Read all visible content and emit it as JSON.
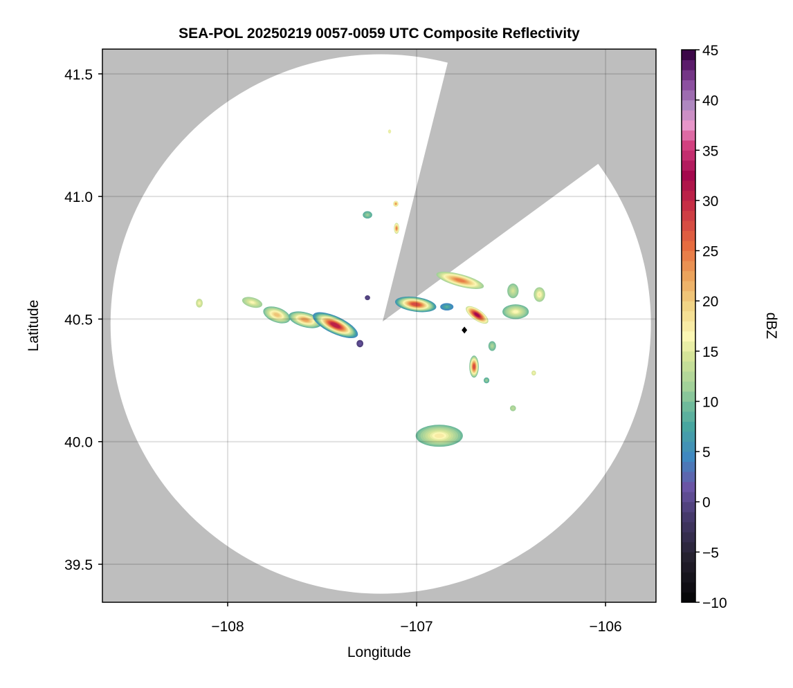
{
  "chart_data": {
    "type": "heatmap",
    "title": "SEA-POL 20250219 0057-0059 UTC Composite Reflectivity",
    "xlabel": "Longitude",
    "ylabel": "Latitude",
    "xlim": [
      -108.663,
      -105.733
    ],
    "ylim": [
      39.345,
      41.601
    ],
    "xticks": [
      -108,
      -107,
      -106
    ],
    "xtick_labels": [
      "−108",
      "−107",
      "−106"
    ],
    "yticks": [
      39.5,
      40.0,
      40.5,
      41.0,
      41.5
    ],
    "ytick_labels": [
      "39.5",
      "40.0",
      "40.5",
      "41.0",
      "41.5"
    ],
    "grid": true,
    "colors": {
      "no_data": "#bebebe",
      "coverage": "#ffffff",
      "marker": "#000000"
    },
    "colorbar": {
      "label": "dBZ",
      "range": [
        -10,
        45
      ],
      "step": 1,
      "ticks": [
        -10,
        -5,
        0,
        5,
        10,
        15,
        20,
        25,
        30,
        35,
        40,
        45
      ],
      "tick_labels": [
        "−10",
        "−5",
        "0",
        "5",
        "10",
        "15",
        "20",
        "25",
        "30",
        "35",
        "40",
        "45"
      ],
      "stops": [
        [
          -10,
          "#000000"
        ],
        [
          -5,
          "#25212f"
        ],
        [
          -1,
          "#45396b"
        ],
        [
          2,
          "#6a55a5"
        ],
        [
          5,
          "#3f88c0"
        ],
        [
          8,
          "#48a6a0"
        ],
        [
          10,
          "#6fba9b"
        ],
        [
          12,
          "#a2d199"
        ],
        [
          15,
          "#d5e498"
        ],
        [
          17,
          "#fcf7b4"
        ],
        [
          20,
          "#f1d486"
        ],
        [
          23,
          "#eba35c"
        ],
        [
          26,
          "#e66c40"
        ],
        [
          30,
          "#c62e45"
        ],
        [
          33,
          "#a4084d"
        ],
        [
          36,
          "#d2407f"
        ],
        [
          38,
          "#e796c9"
        ],
        [
          40,
          "#ae88c0"
        ],
        [
          42,
          "#8c50a0"
        ],
        [
          44,
          "#5b1c6b"
        ],
        [
          45,
          "#3c0848"
        ]
      ]
    },
    "radar": {
      "lon": -106.747,
      "lat": 40.455
    },
    "coverage": {
      "center_lon": -107.19,
      "center_lat": 40.48,
      "radius_lon_deg": 1.43,
      "radius_lat_deg": 1.1
    },
    "blocked_sector": {
      "apex": [
        -107.18,
        40.49
      ],
      "edge1": [
        -106.842,
        41.525
      ],
      "edge2": [
        -106.062,
        41.12
      ]
    },
    "echoes": [
      {
        "lon": -107.74,
        "lat": 40.517,
        "dlon": 0.075,
        "dlat": 0.03,
        "rot": 20,
        "peak_dbz": 21,
        "edge_dbz": 10
      },
      {
        "lon": -107.59,
        "lat": 40.497,
        "dlon": 0.09,
        "dlat": 0.03,
        "rot": 15,
        "peak_dbz": 23,
        "edge_dbz": 9
      },
      {
        "lon": -107.43,
        "lat": 40.475,
        "dlon": 0.13,
        "dlat": 0.035,
        "rot": 25,
        "peak_dbz": 31,
        "edge_dbz": 5
      },
      {
        "lon": -107.87,
        "lat": 40.568,
        "dlon": 0.055,
        "dlat": 0.02,
        "rot": 15,
        "peak_dbz": 17,
        "edge_dbz": 12
      },
      {
        "lon": -108.15,
        "lat": 40.565,
        "dlon": 0.018,
        "dlat": 0.018,
        "rot": 0,
        "peak_dbz": 17,
        "edge_dbz": 14
      },
      {
        "lon": -107.3,
        "lat": 40.4,
        "dlon": 0.018,
        "dlat": 0.015,
        "rot": 0,
        "peak_dbz": 2,
        "edge_dbz": 0
      },
      {
        "lon": -107.005,
        "lat": 40.56,
        "dlon": 0.11,
        "dlat": 0.03,
        "rot": 8,
        "peak_dbz": 28,
        "edge_dbz": 6
      },
      {
        "lon": -106.77,
        "lat": 40.658,
        "dlon": 0.13,
        "dlat": 0.025,
        "rot": 15,
        "peak_dbz": 25,
        "edge_dbz": 12
      },
      {
        "lon": -106.68,
        "lat": 40.517,
        "dlon": 0.07,
        "dlat": 0.022,
        "rot": 35,
        "peak_dbz": 33,
        "edge_dbz": 14
      },
      {
        "lon": -106.84,
        "lat": 40.55,
        "dlon": 0.035,
        "dlat": 0.015,
        "rot": 0,
        "peak_dbz": 9,
        "edge_dbz": 5
      },
      {
        "lon": -106.476,
        "lat": 40.53,
        "dlon": 0.07,
        "dlat": 0.03,
        "rot": 0,
        "peak_dbz": 17,
        "edge_dbz": 10
      },
      {
        "lon": -106.49,
        "lat": 40.615,
        "dlon": 0.03,
        "dlat": 0.03,
        "rot": 0,
        "peak_dbz": 15,
        "edge_dbz": 11
      },
      {
        "lon": -106.35,
        "lat": 40.6,
        "dlon": 0.03,
        "dlat": 0.03,
        "rot": 0,
        "peak_dbz": 18,
        "edge_dbz": 12
      },
      {
        "lon": -106.696,
        "lat": 40.306,
        "dlon": 0.025,
        "dlat": 0.045,
        "rot": 0,
        "peak_dbz": 28,
        "edge_dbz": 10
      },
      {
        "lon": -106.88,
        "lat": 40.024,
        "dlon": 0.125,
        "dlat": 0.045,
        "rot": 0,
        "peak_dbz": 18,
        "edge_dbz": 10
      },
      {
        "lon": -107.106,
        "lat": 40.87,
        "dlon": 0.014,
        "dlat": 0.022,
        "rot": 0,
        "peak_dbz": 25,
        "edge_dbz": 14
      },
      {
        "lon": -107.11,
        "lat": 40.97,
        "dlon": 0.014,
        "dlat": 0.012,
        "rot": 0,
        "peak_dbz": 24,
        "edge_dbz": 15
      },
      {
        "lon": -107.26,
        "lat": 40.925,
        "dlon": 0.025,
        "dlat": 0.015,
        "rot": 0,
        "peak_dbz": 12,
        "edge_dbz": 9
      },
      {
        "lon": -107.143,
        "lat": 41.265,
        "dlon": 0.008,
        "dlat": 0.008,
        "rot": 0,
        "peak_dbz": 17,
        "edge_dbz": 16
      },
      {
        "lon": -106.49,
        "lat": 40.136,
        "dlon": 0.016,
        "dlat": 0.012,
        "rot": 0,
        "peak_dbz": 14,
        "edge_dbz": 12
      },
      {
        "lon": -107.26,
        "lat": 40.587,
        "dlon": 0.014,
        "dlat": 0.01,
        "rot": 0,
        "peak_dbz": 1,
        "edge_dbz": 0
      },
      {
        "lon": -106.6,
        "lat": 40.39,
        "dlon": 0.02,
        "dlat": 0.02,
        "rot": 0,
        "peak_dbz": 13,
        "edge_dbz": 10
      },
      {
        "lon": -106.38,
        "lat": 40.28,
        "dlon": 0.012,
        "dlat": 0.01,
        "rot": 0,
        "peak_dbz": 17,
        "edge_dbz": 15
      },
      {
        "lon": -106.63,
        "lat": 40.25,
        "dlon": 0.015,
        "dlat": 0.012,
        "rot": 0,
        "peak_dbz": 12,
        "edge_dbz": 9
      }
    ]
  }
}
